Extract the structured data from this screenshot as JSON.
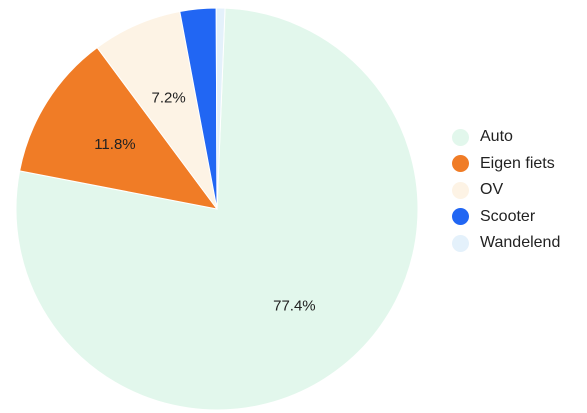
{
  "chart_data": {
    "type": "pie",
    "slices": [
      {
        "label": "Auto",
        "value": 77.4,
        "value_label": "77.4%",
        "color": "#e2f7ec"
      },
      {
        "label": "Eigen fiets",
        "value": 11.8,
        "value_label": "11.8%",
        "color": "#f07c26"
      },
      {
        "label": "OV",
        "value": 7.2,
        "value_label": "7.2%",
        "color": "#fdf3e5"
      },
      {
        "label": "Scooter",
        "value": 2.9,
        "value_label": "",
        "color": "#2166f3"
      },
      {
        "label": "Wandelend",
        "value": 0.7,
        "value_label": "",
        "color": "#e4f1fb"
      }
    ],
    "legend_position": "right"
  }
}
